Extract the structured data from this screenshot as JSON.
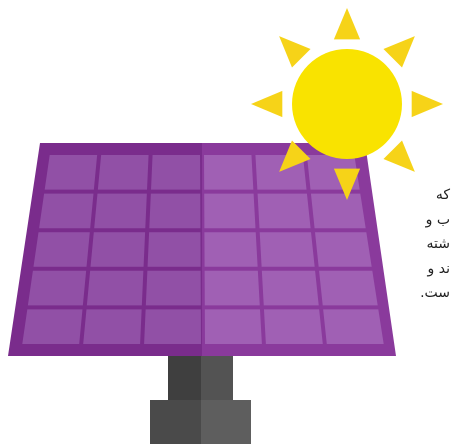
{
  "text_lines": [
    "که",
    "ب و",
    "شته",
    "ند و",
    "ست."
  ]
}
